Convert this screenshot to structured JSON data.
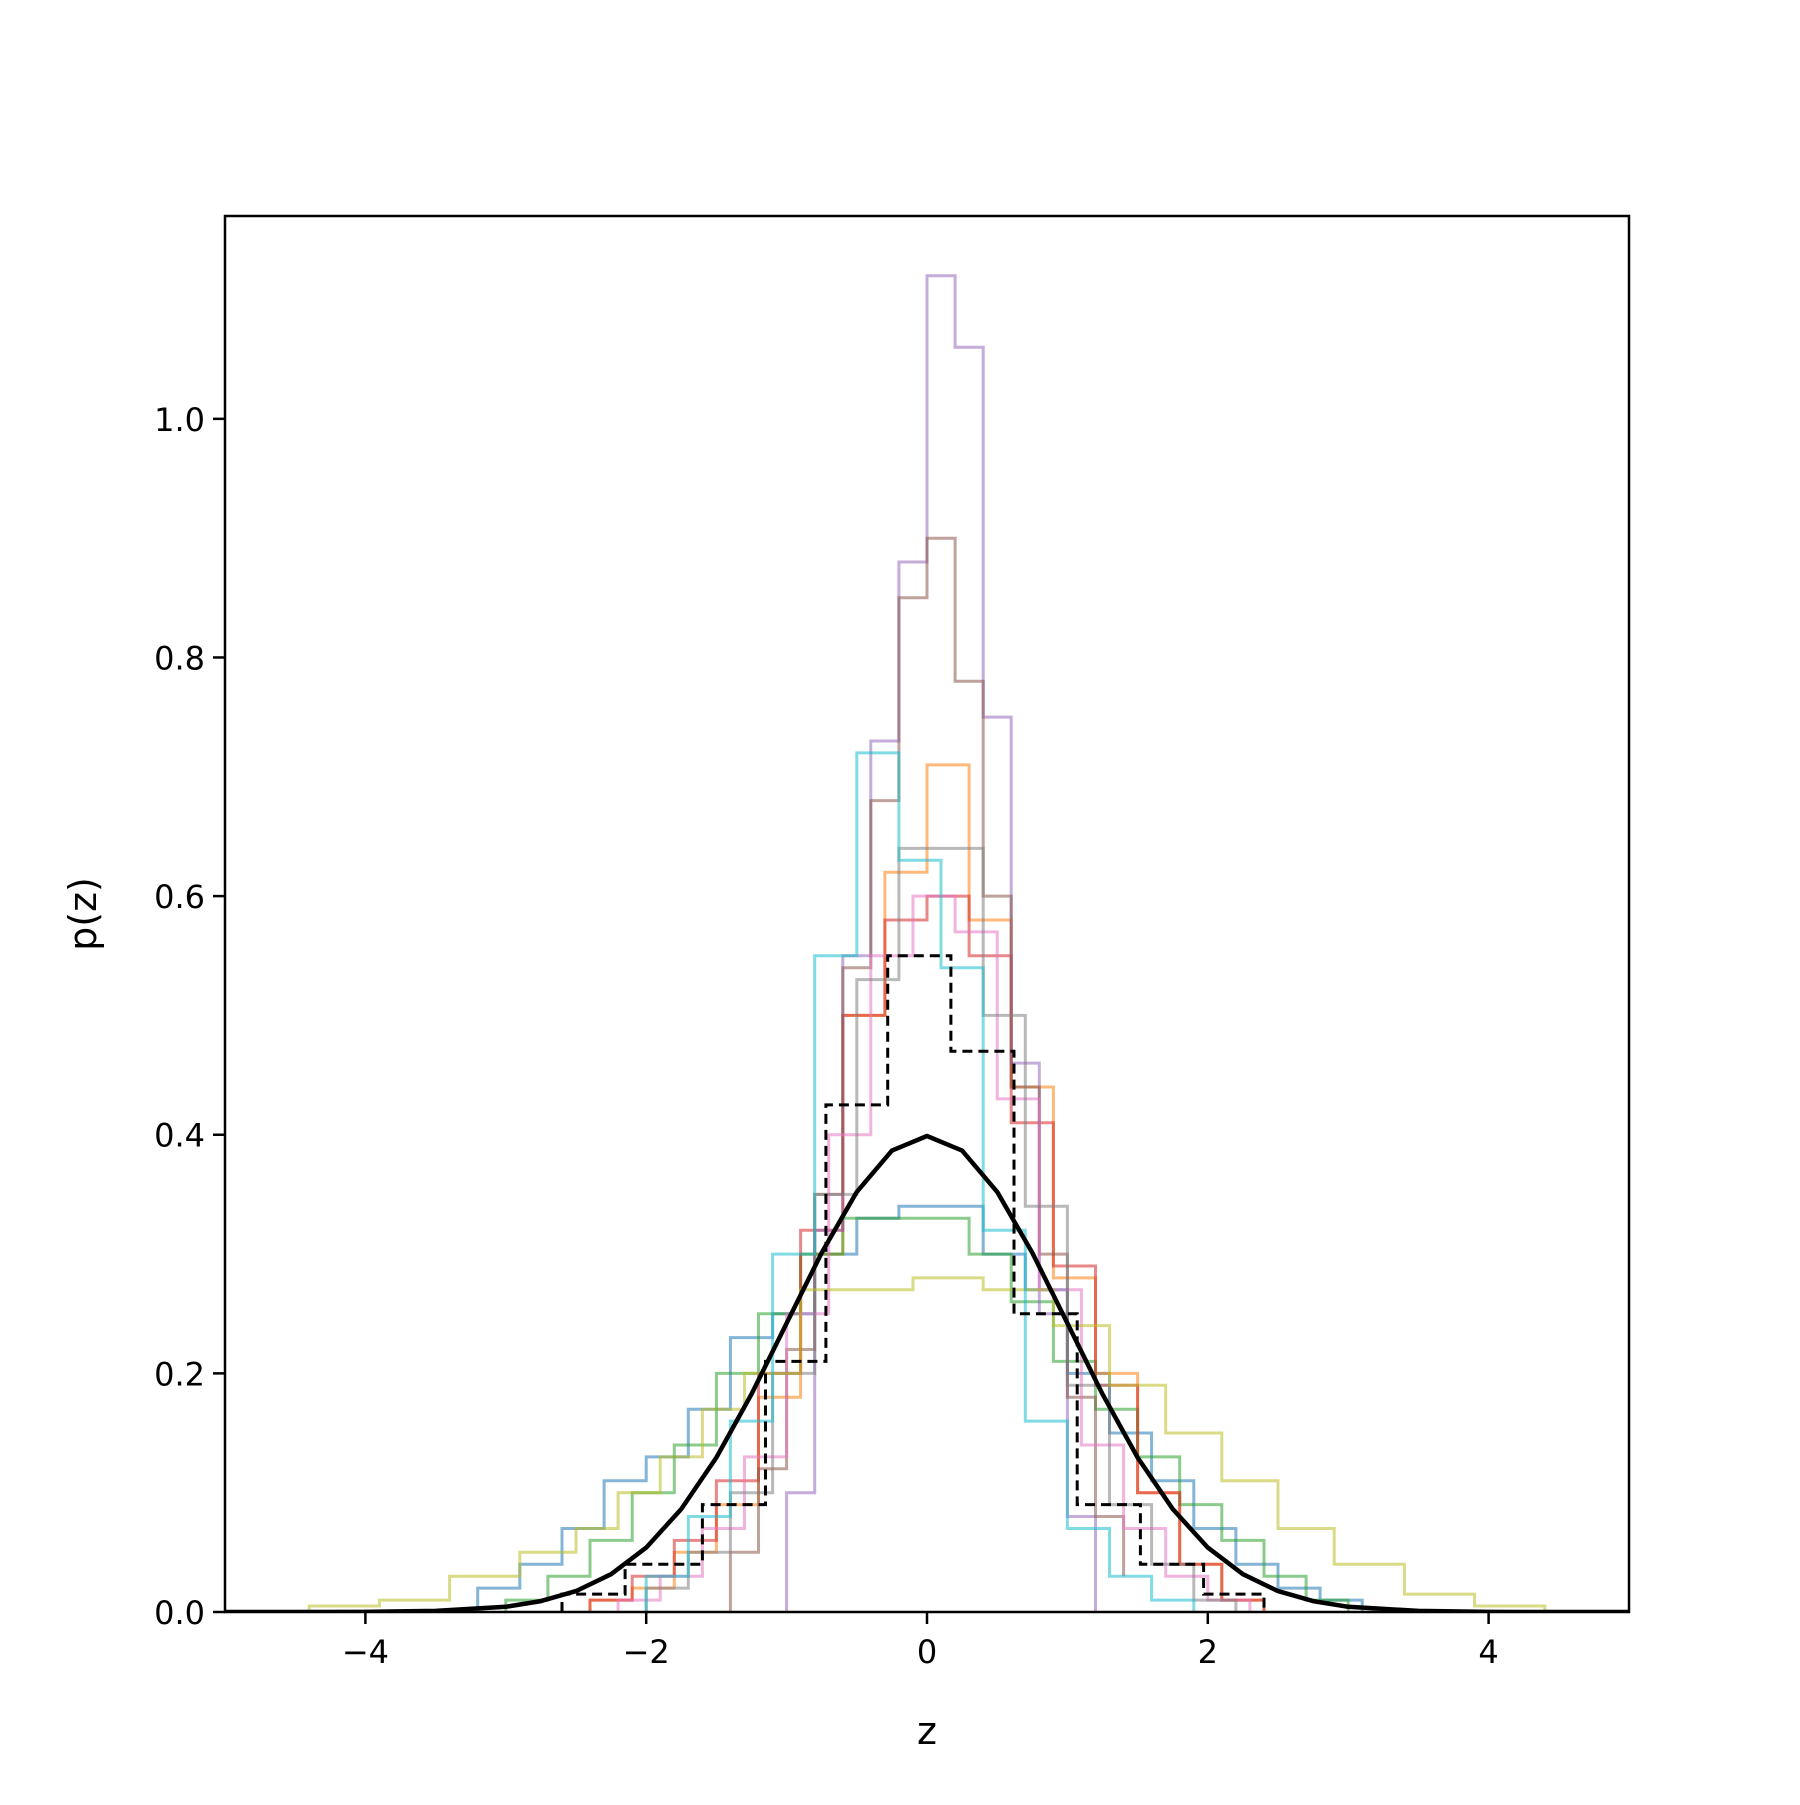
{
  "chart_data": {
    "type": "step_histogram",
    "title": "",
    "xlabel": "z",
    "ylabel": "p(z)",
    "xlim": [
      -5,
      5
    ],
    "ylim": [
      0,
      1.17
    ],
    "x_ticks": [
      -4,
      -2,
      0,
      2,
      4
    ],
    "x_tick_labels": [
      "−4",
      "−2",
      "0",
      "2",
      "4"
    ],
    "y_ticks": [
      0.0,
      0.2,
      0.4,
      0.6,
      0.8,
      1.0
    ],
    "y_tick_labels": [
      "0.0",
      "0.2",
      "0.4",
      "0.6",
      "0.8",
      "1.0"
    ],
    "grid": false,
    "legend": "none",
    "reference_curve": {
      "style": "solid",
      "color": "#000000",
      "x": [
        -5.0,
        -4.5,
        -4.0,
        -3.5,
        -3.0,
        -2.75,
        -2.5,
        -2.25,
        -2.0,
        -1.75,
        -1.5,
        -1.25,
        -1.0,
        -0.75,
        -0.5,
        -0.25,
        0.0,
        0.25,
        0.5,
        0.75,
        1.0,
        1.25,
        1.5,
        1.75,
        2.0,
        2.25,
        2.5,
        2.75,
        3.0,
        3.5,
        4.0,
        4.5,
        5.0
      ],
      "y": [
        0.0,
        0.0,
        0.0001,
        0.0009,
        0.0044,
        0.0091,
        0.0175,
        0.0317,
        0.054,
        0.0863,
        0.1295,
        0.1826,
        0.242,
        0.3011,
        0.3521,
        0.3867,
        0.3989,
        0.3867,
        0.3521,
        0.3011,
        0.242,
        0.1826,
        0.1295,
        0.0863,
        0.054,
        0.0317,
        0.0175,
        0.0091,
        0.0044,
        0.0009,
        0.0001,
        0.0,
        0.0
      ]
    },
    "aggregate_histogram": {
      "style": "dashed",
      "color": "#000000",
      "edges": [
        -2.6,
        -2.15,
        -1.6,
        -1.15,
        -0.72,
        -0.28,
        0.17,
        0.62,
        1.07,
        1.52,
        1.97,
        2.4
      ],
      "values": [
        0.015,
        0.04,
        0.09,
        0.21,
        0.425,
        0.55,
        0.47,
        0.25,
        0.09,
        0.04,
        0.015
      ]
    },
    "series": [
      {
        "color": "#1f77b4",
        "edges": [
          -3.2,
          -2.9,
          -2.6,
          -2.3,
          -2.0,
          -1.7,
          -1.4,
          -1.1,
          -0.8,
          -0.5,
          -0.2,
          0.1,
          0.4,
          0.7,
          1.0,
          1.3,
          1.6,
          1.9,
          2.2,
          2.5,
          2.8,
          3.1
        ],
        "values": [
          0.02,
          0.04,
          0.07,
          0.11,
          0.13,
          0.17,
          0.23,
          0.25,
          0.3,
          0.33,
          0.34,
          0.34,
          0.3,
          0.27,
          0.2,
          0.15,
          0.11,
          0.07,
          0.04,
          0.02,
          0.01
        ]
      },
      {
        "color": "#ff7f0e",
        "edges": [
          -2.4,
          -2.1,
          -1.8,
          -1.5,
          -1.2,
          -0.9,
          -0.6,
          -0.3,
          0.0,
          0.3,
          0.6,
          0.9,
          1.2,
          1.5,
          1.8,
          2.1,
          2.4
        ],
        "values": [
          0.01,
          0.02,
          0.05,
          0.09,
          0.18,
          0.3,
          0.5,
          0.62,
          0.71,
          0.58,
          0.44,
          0.28,
          0.2,
          0.1,
          0.04,
          0.01
        ]
      },
      {
        "color": "#2ca02c",
        "edges": [
          -3.0,
          -2.7,
          -2.4,
          -2.1,
          -1.8,
          -1.5,
          -1.2,
          -0.9,
          -0.6,
          -0.3,
          0.0,
          0.3,
          0.6,
          0.9,
          1.2,
          1.5,
          1.8,
          2.1,
          2.4,
          2.7,
          3.0
        ],
        "values": [
          0.01,
          0.03,
          0.06,
          0.1,
          0.14,
          0.2,
          0.25,
          0.3,
          0.33,
          0.33,
          0.33,
          0.3,
          0.26,
          0.21,
          0.17,
          0.13,
          0.09,
          0.06,
          0.03,
          0.01
        ]
      },
      {
        "color": "#d62728",
        "edges": [
          -2.4,
          -2.1,
          -1.8,
          -1.5,
          -1.2,
          -0.9,
          -0.6,
          -0.3,
          0.0,
          0.3,
          0.6,
          0.9,
          1.2,
          1.5,
          1.8,
          2.1,
          2.4
        ],
        "values": [
          0.01,
          0.03,
          0.06,
          0.11,
          0.2,
          0.32,
          0.5,
          0.58,
          0.6,
          0.55,
          0.41,
          0.29,
          0.19,
          0.1,
          0.04,
          0.01
        ]
      },
      {
        "color": "#9467bd",
        "edges": [
          -1.0,
          -0.8,
          -0.6,
          -0.4,
          -0.2,
          0.0,
          0.2,
          0.4,
          0.6,
          0.8,
          1.0,
          1.2
        ],
        "values": [
          0.1,
          0.32,
          0.55,
          0.73,
          0.88,
          1.12,
          1.06,
          0.75,
          0.46,
          0.25,
          0.08
        ]
      },
      {
        "color": "#8c564b",
        "edges": [
          -1.4,
          -1.2,
          -1.0,
          -0.8,
          -0.6,
          -0.4,
          -0.2,
          0.0,
          0.2,
          0.4,
          0.6,
          0.8,
          1.0,
          1.2,
          1.4
        ],
        "values": [
          0.05,
          0.12,
          0.22,
          0.35,
          0.54,
          0.68,
          0.85,
          0.9,
          0.78,
          0.6,
          0.44,
          0.3,
          0.18,
          0.08,
          0.03
        ]
      },
      {
        "color": "#e377c2",
        "edges": [
          -2.2,
          -1.9,
          -1.6,
          -1.3,
          -1.0,
          -0.7,
          -0.4,
          -0.1,
          0.2,
          0.5,
          0.8,
          1.1,
          1.4,
          1.7,
          2.0,
          2.3
        ],
        "values": [
          0.01,
          0.03,
          0.07,
          0.13,
          0.25,
          0.4,
          0.55,
          0.6,
          0.57,
          0.43,
          0.27,
          0.14,
          0.07,
          0.03,
          0.01
        ]
      },
      {
        "color": "#7f7f7f",
        "edges": [
          -2.0,
          -1.7,
          -1.4,
          -1.1,
          -0.8,
          -0.5,
          -0.2,
          0.1,
          0.4,
          0.7,
          1.0,
          1.3,
          1.6,
          1.9,
          2.2
        ],
        "values": [
          0.02,
          0.05,
          0.1,
          0.2,
          0.35,
          0.53,
          0.64,
          0.64,
          0.5,
          0.34,
          0.19,
          0.09,
          0.04,
          0.01
        ]
      },
      {
        "color": "#bcbd22",
        "edges": [
          -4.4,
          -3.9,
          -3.4,
          -2.9,
          -2.5,
          -2.2,
          -1.9,
          -1.6,
          -1.3,
          -0.9,
          -0.5,
          -0.1,
          0.4,
          0.9,
          1.3,
          1.7,
          2.1,
          2.5,
          2.9,
          3.4,
          3.9,
          4.4
        ],
        "values": [
          0.005,
          0.01,
          0.03,
          0.05,
          0.07,
          0.1,
          0.13,
          0.17,
          0.2,
          0.27,
          0.27,
          0.28,
          0.27,
          0.24,
          0.19,
          0.15,
          0.11,
          0.07,
          0.04,
          0.015,
          0.005
        ]
      },
      {
        "color": "#17becf",
        "edges": [
          -2.0,
          -1.7,
          -1.4,
          -1.1,
          -0.8,
          -0.5,
          -0.2,
          0.1,
          0.4,
          0.7,
          1.0,
          1.3,
          1.6,
          1.9
        ],
        "values": [
          0.03,
          0.08,
          0.16,
          0.3,
          0.55,
          0.72,
          0.63,
          0.54,
          0.32,
          0.16,
          0.07,
          0.03,
          0.01
        ]
      }
    ]
  }
}
